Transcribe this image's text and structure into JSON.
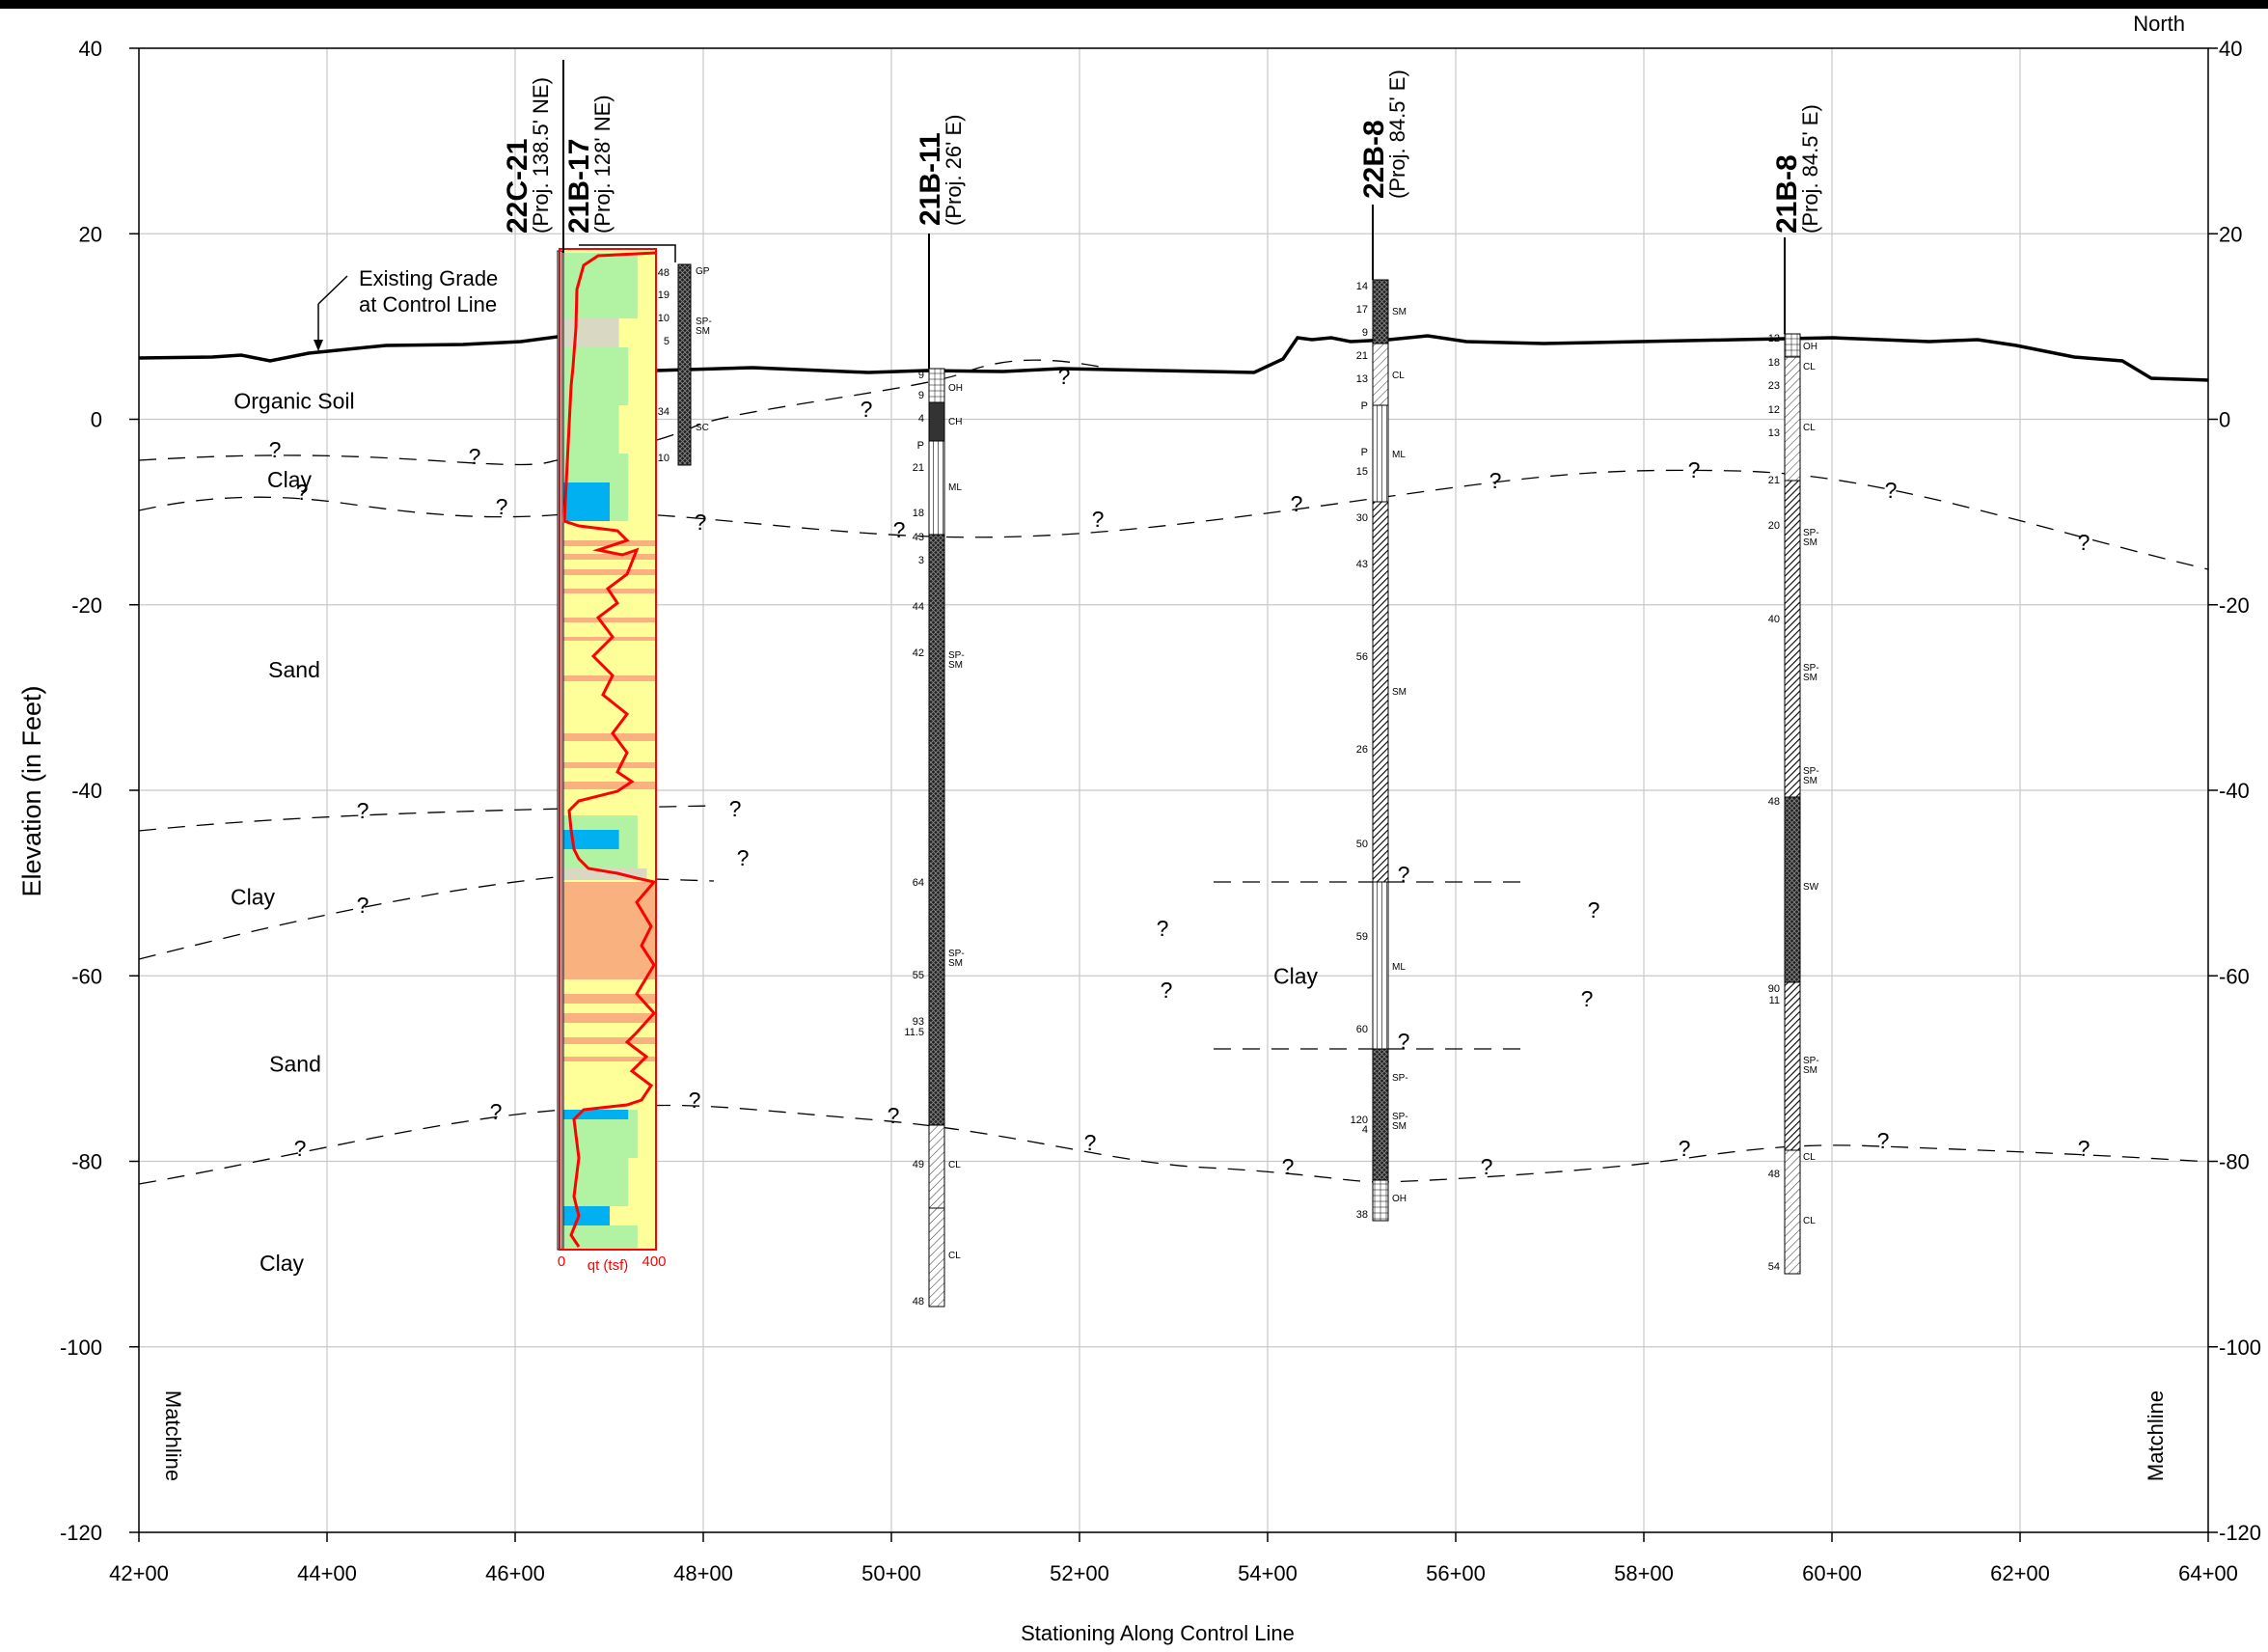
{
  "header": {
    "north_label": "North"
  },
  "axes": {
    "ylabel": "Elevation (in Feet)",
    "xlabel": "Stationing Along Control Line",
    "y_range": [
      -120,
      40
    ],
    "y_ticks": [
      "40",
      "20",
      "0",
      "-20",
      "-40",
      "-60",
      "-80",
      "-100",
      "-120"
    ],
    "x_ticks": [
      "42+00",
      "44+00",
      "46+00",
      "48+00",
      "50+00",
      "52+00",
      "54+00",
      "56+00",
      "58+00",
      "60+00",
      "62+00",
      "64+00"
    ],
    "x_range_stations": [
      42,
      64
    ],
    "matchline_left": "Matchline",
    "matchline_right": "Matchline"
  },
  "annotations": {
    "existing_grade_line1": "Existing Grade",
    "existing_grade_line2": "at Control Line",
    "question": "?"
  },
  "layers": [
    {
      "id": "organic",
      "label": "Organic Soil",
      "elev": 2
    },
    {
      "id": "clay1",
      "label": "Clay",
      "elev": -6.5
    },
    {
      "id": "sand1",
      "label": "Sand",
      "elev": -27
    },
    {
      "id": "clay2",
      "label": "Clay",
      "elev": -51.5
    },
    {
      "id": "clay_mid",
      "label": "Clay",
      "elev": -60
    },
    {
      "id": "sand2",
      "label": "Sand",
      "elev": -69.5
    },
    {
      "id": "clay3",
      "label": "Clay",
      "elev": -91
    }
  ],
  "borings": [
    {
      "id": "22C-21",
      "proj": "(Proj. 138.5' NE)"
    },
    {
      "id": "21B-17",
      "proj": "(Proj. 128' NE)"
    },
    {
      "id": "21B-11",
      "proj": "(Proj. 26' E)"
    },
    {
      "id": "22B-8",
      "proj": "(Proj. 84.5' E)"
    },
    {
      "id": "21B-8",
      "proj": "(Proj. 84.5' E)"
    }
  ],
  "cpt": {
    "x_label": "qt (tsf)",
    "x_min_label": "0",
    "x_max_label": "400"
  },
  "boring_logs": {
    "b21B17": {
      "n_values": [
        "48",
        "19",
        "10",
        "5",
        "34",
        "10"
      ],
      "uscs": [
        "GP",
        "SP-\nSM",
        "SC"
      ]
    },
    "b21B11": {
      "n_values": [
        "9",
        "9",
        "4",
        "P",
        "21",
        "18",
        "43",
        "3",
        "44",
        "42",
        "64",
        "55",
        "93",
        "11.5",
        "49",
        "48"
      ],
      "uscs": [
        "OH",
        "CH",
        "ML",
        "SP-\nSM",
        "SP-\nSM",
        "CL",
        "CL"
      ]
    },
    "b22B8": {
      "n_values": [
        "14",
        "17",
        "9",
        "21",
        "13",
        "P",
        "P",
        "15",
        "30",
        "43",
        "56",
        "26",
        "50",
        "59",
        "60",
        "120",
        "4",
        "38"
      ],
      "uscs": [
        "SM",
        "CL",
        "ML",
        "SM",
        "ML",
        "SP-",
        "SP-\nSM",
        "OH"
      ]
    },
    "b21B8": {
      "n_values": [
        "12",
        "18",
        "23",
        "12",
        "13",
        "21",
        "20",
        "40",
        "48",
        "90",
        "11",
        "48",
        "54"
      ],
      "uscs": [
        "OH",
        "CL",
        "CL",
        "SP-\nSM",
        "SP-\nSM",
        "SP-\nSM",
        "SW",
        "SP-\nSM",
        "CL",
        "CL"
      ]
    }
  },
  "colors": {
    "cpt_sand": "#ffff99",
    "cpt_orange": "#f9b27f",
    "cpt_green": "#b2f2a3",
    "cpt_blue": "#00b0f0",
    "cpt_gray": "#d9d9c3",
    "cpt_curve": "#ff0000",
    "grid": "#c8c8c8"
  }
}
